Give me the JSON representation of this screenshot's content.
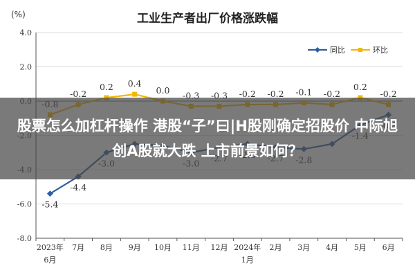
{
  "chart_data": {
    "type": "line",
    "title": "工业生产者出厂价格涨跌幅",
    "unit_label": "(%)",
    "x": [
      "2023年\n6月",
      "7月",
      "8月",
      "9月",
      "10月",
      "11月",
      "12月",
      "2024年\n1月",
      "2月",
      "3月",
      "4月",
      "5月",
      "6月"
    ],
    "ylim": [
      -8.0,
      4.0
    ],
    "yticks": [
      "4.0",
      "2.0",
      "0.0",
      "-2.0",
      "-4.0",
      "-6.0",
      "-8.0"
    ],
    "legend_position": "top-right",
    "grid": true,
    "series": [
      {
        "name": "同比",
        "color": "#2e5e9e",
        "values": [
          -5.4,
          -4.4,
          -3.0,
          -2.5,
          -2.6,
          -3.0,
          -2.7,
          -2.5,
          -2.7,
          -2.8,
          -2.5,
          -1.4,
          -0.8
        ],
        "labels": [
          "-5.4",
          "-4.4",
          "-3.0",
          "",
          "",
          "-3.0",
          "-2.7",
          "-2.5",
          "-2.7",
          "-2.8",
          "",
          "-1.4",
          "-0.8"
        ]
      },
      {
        "name": "环比",
        "color": "#f2b800",
        "values": [
          -0.8,
          -0.2,
          0.2,
          0.4,
          0.0,
          -0.3,
          -0.3,
          -0.2,
          -0.2,
          -0.1,
          -0.2,
          0.2,
          -0.2
        ],
        "labels": [
          "-0.8",
          "-0.2",
          "0.2",
          "0.4",
          "0.0",
          "-0.3",
          "-0.3",
          "-0.2",
          "-0.2",
          "-0.1",
          "-0.2",
          "0.2",
          "-0.2"
        ]
      }
    ]
  },
  "overlay": {
    "headline": "股票怎么加杠杆操作 港股“子”曰|H股刚确定招股价 中际旭创A股就大跌 上市前景如何？"
  }
}
